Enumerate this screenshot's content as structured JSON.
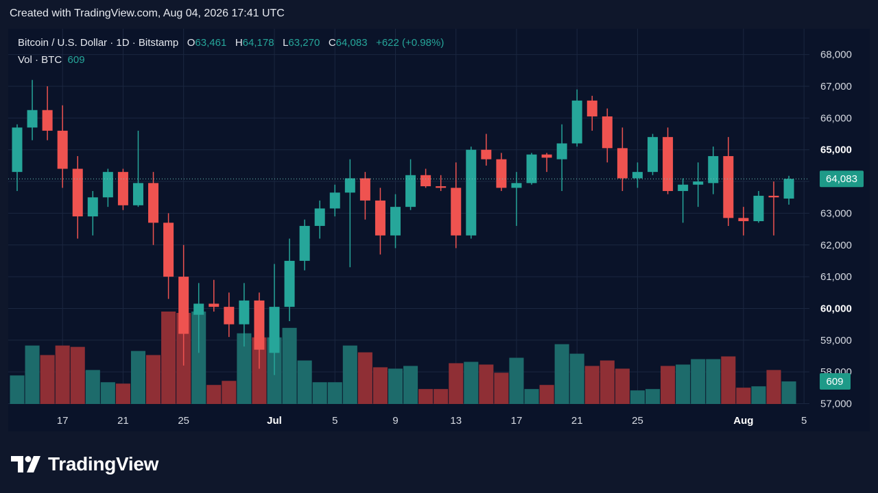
{
  "header": {
    "created_text": "Created with TradingView.com, Aug 04, 2026 17:41 UTC"
  },
  "legend": {
    "symbol": "Bitcoin / U.S. Dollar · 1D · Bitstamp",
    "o_label": "O",
    "o_value": "63,461",
    "h_label": "H",
    "h_value": "64,178",
    "l_label": "L",
    "l_value": "63,270",
    "c_label": "C",
    "c_value": "64,083",
    "change": "+622 (+0.98%)",
    "vol_label": "Vol · BTC",
    "vol_value": "609"
  },
  "price_badge": "64,083",
  "volume_badge": "609",
  "brand": {
    "name": "TradingView",
    "logo_icon": "tradingview-logo-icon"
  },
  "colors": {
    "up": "#26a69a",
    "down": "#ef5350",
    "vol_up": "#1d6b6b",
    "vol_down": "#8f2f35",
    "background": "#0a1329",
    "grid": "#1b2740"
  },
  "chart_data": {
    "type": "candlestick",
    "y_axis": {
      "ticks": [
        "57,000",
        "58,000",
        "59,000",
        "60,000",
        "61,000",
        "62,000",
        "63,000",
        "64,000",
        "65,000",
        "66,000",
        "67,000",
        "68,000"
      ],
      "bold_ticks": [
        "60,000",
        "65,000"
      ],
      "ylim": [
        56950,
        68100
      ]
    },
    "x_axis": {
      "ticks": [
        {
          "label": "17",
          "index": 3,
          "bold": false
        },
        {
          "label": "21",
          "index": 7,
          "bold": false
        },
        {
          "label": "25",
          "index": 11,
          "bold": false
        },
        {
          "label": "Jul",
          "index": 17,
          "bold": true
        },
        {
          "label": "5",
          "index": 21,
          "bold": false
        },
        {
          "label": "9",
          "index": 25,
          "bold": false
        },
        {
          "label": "13",
          "index": 29,
          "bold": false
        },
        {
          "label": "17",
          "index": 33,
          "bold": false
        },
        {
          "label": "21",
          "index": 37,
          "bold": false
        },
        {
          "label": "25",
          "index": 41,
          "bold": false
        },
        {
          "label": "Aug",
          "index": 48,
          "bold": true
        },
        {
          "label": "5",
          "index": 52,
          "bold": false
        }
      ]
    },
    "last_price": 64083,
    "grid": true,
    "volume_max": 3.4,
    "candles": [
      {
        "o": 64300,
        "h": 65800,
        "l": 63700,
        "c": 65700,
        "v": 1.05
      },
      {
        "o": 65700,
        "h": 67200,
        "l": 65300,
        "c": 66250,
        "v": 2.15
      },
      {
        "o": 66250,
        "h": 67000,
        "l": 65300,
        "c": 65600,
        "v": 1.8
      },
      {
        "o": 65600,
        "h": 66400,
        "l": 63800,
        "c": 64400,
        "v": 2.15
      },
      {
        "o": 64400,
        "h": 64800,
        "l": 62200,
        "c": 62900,
        "v": 2.1
      },
      {
        "o": 62900,
        "h": 63700,
        "l": 62300,
        "c": 63500,
        "v": 1.25
      },
      {
        "o": 63500,
        "h": 64400,
        "l": 63200,
        "c": 64300,
        "v": 0.8
      },
      {
        "o": 64300,
        "h": 64400,
        "l": 63100,
        "c": 63250,
        "v": 0.75
      },
      {
        "o": 63250,
        "h": 65600,
        "l": 63200,
        "c": 63950,
        "v": 1.95
      },
      {
        "o": 63950,
        "h": 64300,
        "l": 62000,
        "c": 62700,
        "v": 1.8
      },
      {
        "o": 62700,
        "h": 63000,
        "l": 60300,
        "c": 61000,
        "v": 3.4
      },
      {
        "o": 61000,
        "h": 62000,
        "l": 58200,
        "c": 59200,
        "v": 3.35
      },
      {
        "o": 59800,
        "h": 60800,
        "l": 58600,
        "c": 60150,
        "v": 3.4
      },
      {
        "o": 60150,
        "h": 60900,
        "l": 59900,
        "c": 60050,
        "v": 0.7
      },
      {
        "o": 60050,
        "h": 60500,
        "l": 59100,
        "c": 59500,
        "v": 0.85
      },
      {
        "o": 59500,
        "h": 60800,
        "l": 58800,
        "c": 60250,
        "v": 2.6
      },
      {
        "o": 60250,
        "h": 60500,
        "l": 58100,
        "c": 58700,
        "v": 2.45
      },
      {
        "o": 58600,
        "h": 61400,
        "l": 57900,
        "c": 60050,
        "v": 2.45
      },
      {
        "o": 60050,
        "h": 62200,
        "l": 59600,
        "c": 61500,
        "v": 2.8
      },
      {
        "o": 61500,
        "h": 62800,
        "l": 61200,
        "c": 62600,
        "v": 1.6
      },
      {
        "o": 62600,
        "h": 63400,
        "l": 62200,
        "c": 63150,
        "v": 0.8
      },
      {
        "o": 63150,
        "h": 63900,
        "l": 62900,
        "c": 63650,
        "v": 0.8
      },
      {
        "o": 63650,
        "h": 64700,
        "l": 61300,
        "c": 64100,
        "v": 2.15
      },
      {
        "o": 64100,
        "h": 64300,
        "l": 62800,
        "c": 63400,
        "v": 1.9
      },
      {
        "o": 63400,
        "h": 63800,
        "l": 61700,
        "c": 62300,
        "v": 1.35
      },
      {
        "o": 62300,
        "h": 63600,
        "l": 61900,
        "c": 63200,
        "v": 1.3
      },
      {
        "o": 63200,
        "h": 64700,
        "l": 63100,
        "c": 64200,
        "v": 1.4
      },
      {
        "o": 64200,
        "h": 64400,
        "l": 63800,
        "c": 63850,
        "v": 0.55
      },
      {
        "o": 63850,
        "h": 64200,
        "l": 63700,
        "c": 63800,
        "v": 0.55
      },
      {
        "o": 63800,
        "h": 64600,
        "l": 61900,
        "c": 62300,
        "v": 1.5
      },
      {
        "o": 62300,
        "h": 65100,
        "l": 62200,
        "c": 65000,
        "v": 1.55
      },
      {
        "o": 65000,
        "h": 65500,
        "l": 64500,
        "c": 64700,
        "v": 1.45
      },
      {
        "o": 64700,
        "h": 64900,
        "l": 63700,
        "c": 63800,
        "v": 1.15
      },
      {
        "o": 63800,
        "h": 64300,
        "l": 62600,
        "c": 63950,
        "v": 1.7
      },
      {
        "o": 63950,
        "h": 64900,
        "l": 63900,
        "c": 64850,
        "v": 0.55
      },
      {
        "o": 64850,
        "h": 64900,
        "l": 64300,
        "c": 64750,
        "v": 0.7
      },
      {
        "o": 64700,
        "h": 65800,
        "l": 63700,
        "c": 65200,
        "v": 2.2
      },
      {
        "o": 65200,
        "h": 66900,
        "l": 65100,
        "c": 66550,
        "v": 1.85
      },
      {
        "o": 66550,
        "h": 66700,
        "l": 65600,
        "c": 66050,
        "v": 1.4
      },
      {
        "o": 66050,
        "h": 66300,
        "l": 64600,
        "c": 65050,
        "v": 1.6
      },
      {
        "o": 65050,
        "h": 65700,
        "l": 63700,
        "c": 64100,
        "v": 1.3
      },
      {
        "o": 64100,
        "h": 64600,
        "l": 63800,
        "c": 64300,
        "v": 0.5
      },
      {
        "o": 64300,
        "h": 65500,
        "l": 64200,
        "c": 65400,
        "v": 0.55
      },
      {
        "o": 65400,
        "h": 65700,
        "l": 63600,
        "c": 63700,
        "v": 1.4
      },
      {
        "o": 63700,
        "h": 64100,
        "l": 62700,
        "c": 63900,
        "v": 1.45
      },
      {
        "o": 63900,
        "h": 64600,
        "l": 63200,
        "c": 64000,
        "v": 1.65
      },
      {
        "o": 63950,
        "h": 65100,
        "l": 63600,
        "c": 64800,
        "v": 1.65
      },
      {
        "o": 64800,
        "h": 65400,
        "l": 62600,
        "c": 62850,
        "v": 1.75
      },
      {
        "o": 62850,
        "h": 63200,
        "l": 62300,
        "c": 62750,
        "v": 0.6
      },
      {
        "o": 62750,
        "h": 63700,
        "l": 62700,
        "c": 63550,
        "v": 0.65
      },
      {
        "o": 63550,
        "h": 64000,
        "l": 62300,
        "c": 63500,
        "v": 1.25
      },
      {
        "o": 63461,
        "h": 64178,
        "l": 63270,
        "c": 64083,
        "v": 0.83
      }
    ]
  }
}
